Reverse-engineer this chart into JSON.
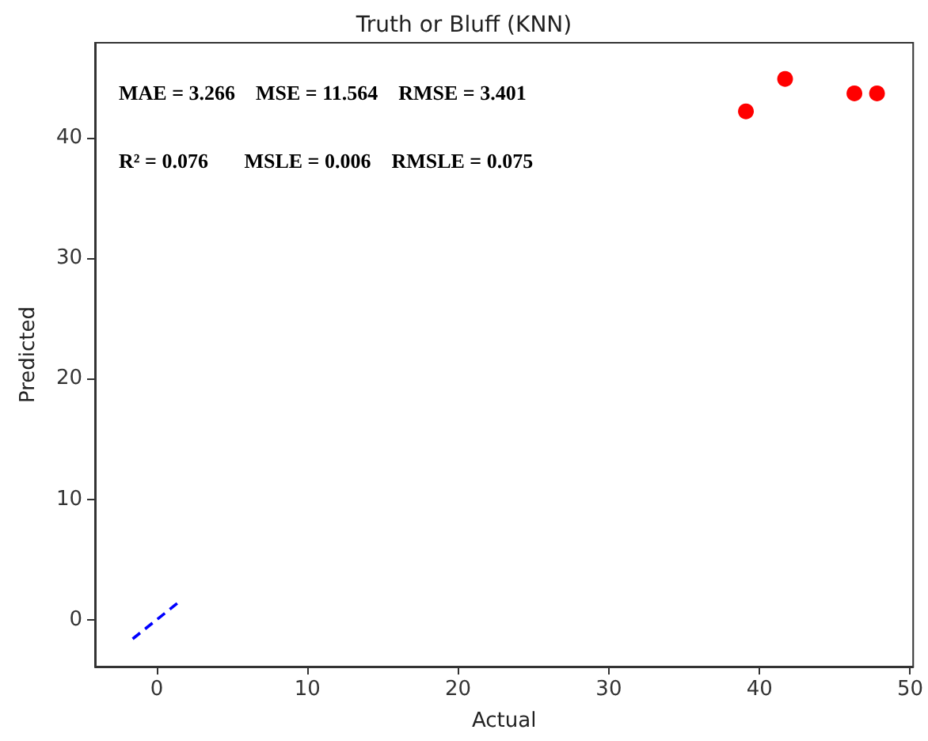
{
  "chart_data": {
    "type": "scatter",
    "title": "Truth or Bluff (KNN)",
    "xlabel": "Actual",
    "ylabel": "Predicted",
    "annotations": [
      "MAE = 3.266    MSE = 11.564    RMSE = 3.401",
      "R² = 0.076       MSLE = 0.006    RMSLE = 0.075"
    ],
    "series": [
      {
        "type": "scatter",
        "color": "#ff0000",
        "marker": "circle",
        "x": [
          39.1,
          41.7,
          46.3,
          47.8
        ],
        "values": [
          42.2,
          44.9,
          43.7,
          43.7
        ]
      },
      {
        "type": "line",
        "color": "#0000ff",
        "line_style": "dashed",
        "marker": "none",
        "x": [
          -1.6,
          1.5
        ],
        "values": [
          -1.6,
          1.5
        ]
      }
    ],
    "xlim": [
      -4.1,
      50.2
    ],
    "ylim": [
      -3.9,
      47.9
    ],
    "xticks": [
      0,
      10,
      20,
      30,
      40,
      50
    ],
    "yticks": [
      0,
      10,
      20,
      30,
      40
    ],
    "grid": false
  }
}
